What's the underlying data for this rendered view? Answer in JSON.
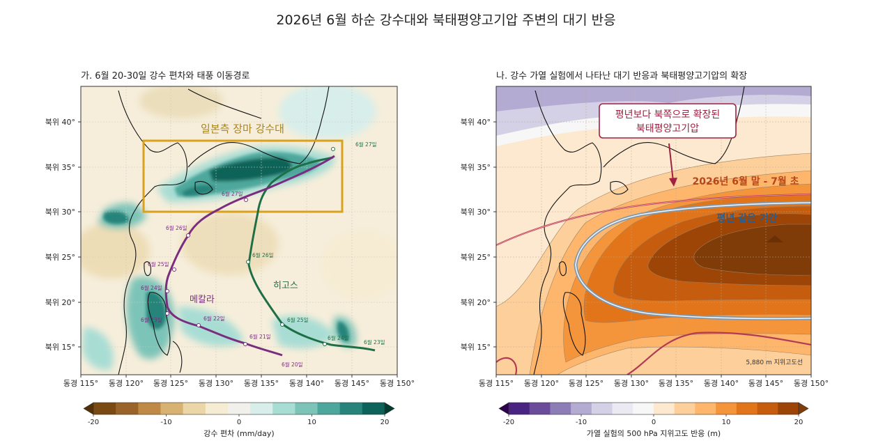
{
  "title": "2026년 6월 하순 강수대와 북태평양고기압 주변의 대기 반응",
  "panel_a": {
    "title": "가. 6월 20-30일 강수 편차와 태풍 이동경로",
    "region_label": "일본측 장마 강수대",
    "typhoon_purple_name": "메칼라",
    "typhoon_green_name": "히고스",
    "purple_track_dates": [
      "6월 20일",
      "6월 21일",
      "6월 22일",
      "6월 23일",
      "6월 24일",
      "6월 25일",
      "6월 26일",
      "6월 27일"
    ],
    "green_track_dates": [
      "6월 23일",
      "6월 24일",
      "6월 25일",
      "6월 26일",
      "6월 27일"
    ],
    "colorbar_label": "강수 편차 (mm/day)",
    "colorbar_ticks": [
      "-20",
      "-10",
      "0",
      "10",
      "20"
    ],
    "colors": [
      "#543005",
      "#7a4a12",
      "#99632a",
      "#bf8a45",
      "#d7b272",
      "#ead6a6",
      "#f5ecd3",
      "#f1f0ea",
      "#d8eeea",
      "#a8ddd4",
      "#7dc4b8",
      "#4ea79c",
      "#28847a",
      "#0d6359",
      "#003c30"
    ]
  },
  "panel_b": {
    "title": "나. 강수 가열 실험에서 나타난 대기 반응과 북태평양고기압의 확장",
    "callout": [
      "평년보다 북쪽으로 확장된",
      "북태평양고기압"
    ],
    "label_late_june": "2026년 6월 말 - 7월 초",
    "label_normal": "평년 같은 기간",
    "contour_note": "5,880 m 지위고도선",
    "colorbar_label": "가열 실험의 500 hPa 지위고도 반응 (m)",
    "colorbar_ticks": [
      "-20",
      "-10",
      "0",
      "10",
      "20"
    ],
    "colors": [
      "#2d004b",
      "#492481",
      "#6b4c9a",
      "#8d7db6",
      "#b3abd2",
      "#d4d0e6",
      "#ebe9f2",
      "#f7f7f7",
      "#fde9cf",
      "#fdd09b",
      "#fdb66b",
      "#f5953b",
      "#e2751a",
      "#c55c0e",
      "#9c4506",
      "#7f3b08"
    ]
  },
  "axes": {
    "lat_ticks": [
      "북위 15°",
      "북위 20°",
      "북위 25°",
      "북위 30°",
      "북위 35°",
      "북위 40°"
    ],
    "lon_ticks": [
      "동경 115°",
      "동경 120°",
      "동경 125°",
      "동경 130°",
      "동경 135°",
      "동경 140°",
      "동경 145°",
      "동경 150°"
    ]
  }
}
